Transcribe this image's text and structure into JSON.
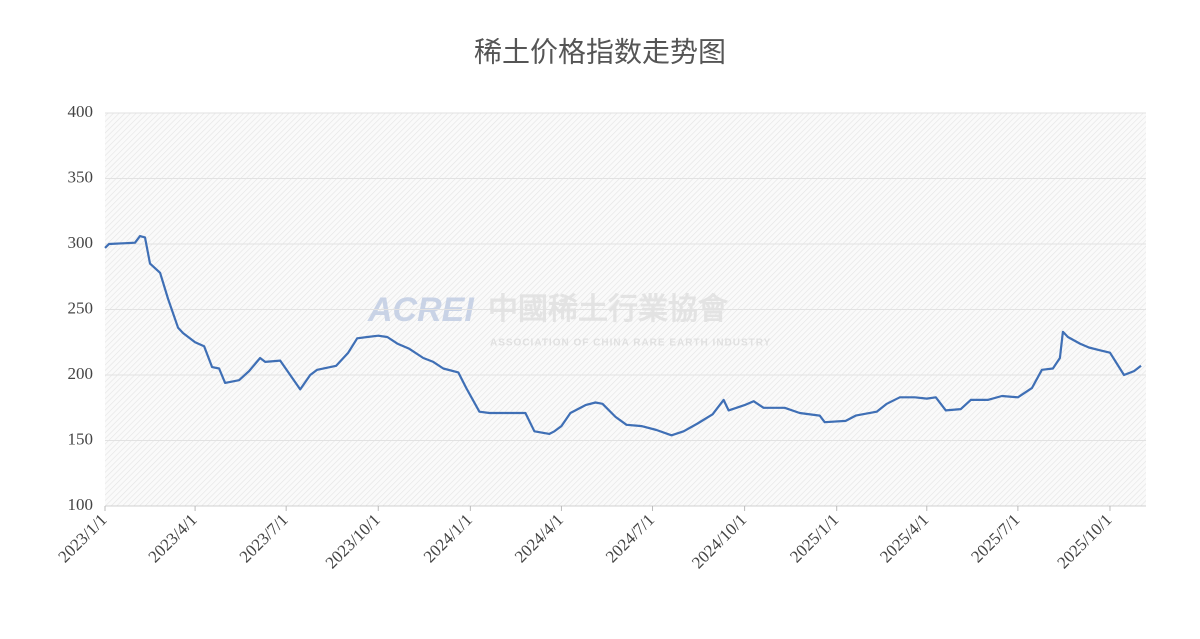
{
  "chart_data": {
    "type": "line",
    "title": "稀土价格指数走势图",
    "watermark": {
      "logo": "ACREI",
      "name": "中國稀土行業協會",
      "subtitle": "ASSOCIATION OF CHINA RARE EARTH INDUSTRY"
    },
    "x": [
      "2023/1/1",
      "2023/1/5",
      "2023/1/31",
      "2023/2/5",
      "2023/2/10",
      "2023/2/15",
      "2023/2/25",
      "2023/3/5",
      "2023/3/15",
      "2023/3/20",
      "2023/4/1",
      "2023/4/10",
      "2023/4/18",
      "2023/4/25",
      "2023/5/1",
      "2023/5/15",
      "2023/5/25",
      "2023/6/5",
      "2023/6/10",
      "2023/6/25",
      "2023/7/5",
      "2023/7/15",
      "2023/7/25",
      "2023/8/1",
      "2023/8/20",
      "2023/9/1",
      "2023/9/10",
      "2023/9/20",
      "2023/10/1",
      "2023/10/10",
      "2023/10/20",
      "2023/11/1",
      "2023/11/15",
      "2023/11/25",
      "2023/12/5",
      "2023/12/20",
      "2023/12/28",
      "2024/1/10",
      "2024/1/20",
      "2024/2/25",
      "2024/3/5",
      "2024/3/20",
      "2024/3/25",
      "2024/4/1",
      "2024/4/10",
      "2024/4/25",
      "2024/5/5",
      "2024/5/12",
      "2024/5/25",
      "2024/6/5",
      "2024/6/20",
      "2024/7/5",
      "2024/7/20",
      "2024/8/1",
      "2024/8/15",
      "2024/8/30",
      "2024/9/10",
      "2024/9/15",
      "2024/10/1",
      "2024/10/10",
      "2024/10/20",
      "2024/11/10",
      "2024/11/25",
      "2024/12/15",
      "2024/12/20",
      "2025/1/10",
      "2025/1/20",
      "2025/2/10",
      "2025/2/20",
      "2025/3/5",
      "2025/3/20",
      "2025/4/1",
      "2025/4/10",
      "2025/4/20",
      "2025/5/5",
      "2025/5/15",
      "2025/6/1",
      "2025/6/15",
      "2025/7/1",
      "2025/7/15",
      "2025/7/25",
      "2025/8/5",
      "2025/8/12",
      "2025/8/15",
      "2025/8/20",
      "2025/9/1",
      "2025/9/10",
      "2025/9/20",
      "2025/10/1",
      "2025/10/15",
      "2025/10/25",
      "2025/11/1"
    ],
    "series": [
      {
        "name": "稀土价格指数",
        "color": "#3f6fb5",
        "values": [
          297,
          300,
          301,
          306,
          305,
          285,
          278,
          258,
          236,
          232,
          225,
          222,
          206,
          205,
          194,
          196,
          203,
          213,
          210,
          211,
          200,
          189,
          200,
          204,
          207,
          217,
          228,
          229,
          230,
          229,
          224,
          220,
          213,
          210,
          205,
          202,
          190,
          172,
          171,
          171,
          157,
          155,
          157,
          161,
          171,
          177,
          179,
          178,
          168,
          162,
          161,
          158,
          154,
          157,
          163,
          170,
          181,
          173,
          177,
          180,
          175,
          175,
          171,
          169,
          164,
          165,
          169,
          172,
          178,
          183,
          183,
          182,
          183,
          173,
          174,
          181,
          181,
          184,
          183,
          190,
          204,
          205,
          213,
          233,
          229,
          224,
          221,
          219,
          217,
          200,
          203,
          207
        ]
      }
    ],
    "xlim": [
      "2023/1/1",
      "2025/11/6"
    ],
    "xticks": [
      "2023/1/1",
      "2023/4/1",
      "2023/7/1",
      "2023/10/1",
      "2024/1/1",
      "2024/4/1",
      "2024/7/1",
      "2024/10/1",
      "2025/1/1",
      "2025/4/1",
      "2025/7/1",
      "2025/10/1"
    ],
    "ylim": [
      100,
      400
    ],
    "yticks": [
      100,
      150,
      200,
      250,
      300,
      350,
      400
    ],
    "grid": true
  }
}
